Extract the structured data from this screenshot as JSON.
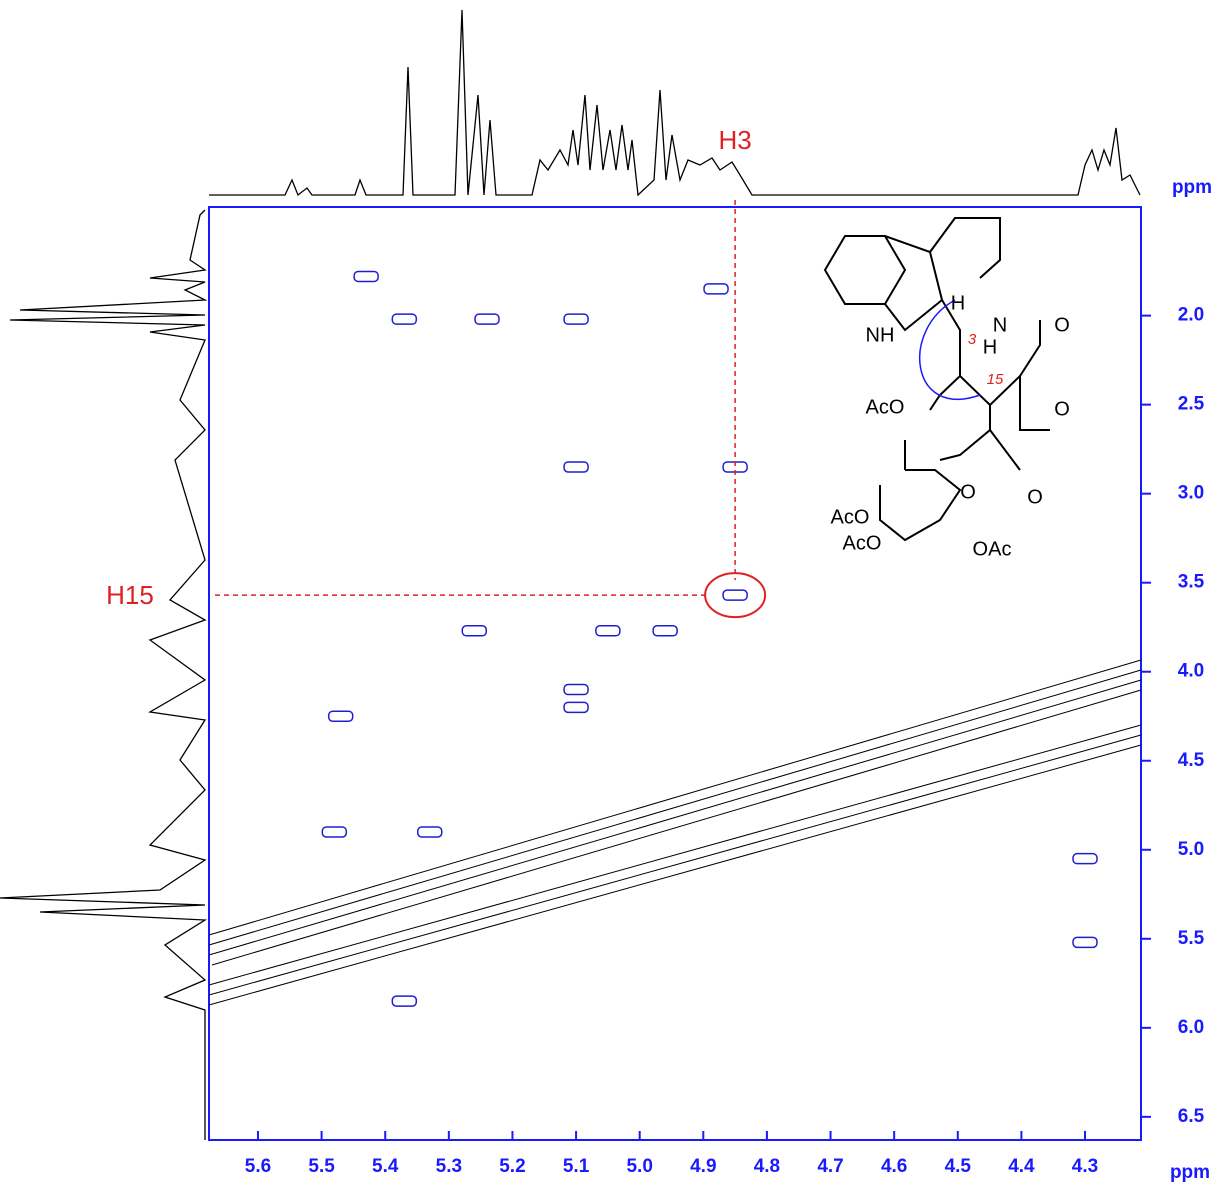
{
  "chart_data": {
    "type": "nmr2d",
    "x_label": "ppm",
    "y_label": "ppm",
    "xlim": [
      5.677,
      4.212
    ],
    "ylim": [
      1.39,
      6.63
    ],
    "xticks": [
      5.6,
      5.5,
      5.4,
      5.3,
      5.2,
      5.1,
      {
        "value": 5,
        "label": "5.0"
      },
      4.9,
      4.8,
      4.7,
      4.6,
      4.5,
      4.4,
      4.3
    ],
    "yticks": [
      {
        "value": 2,
        "label": "2.0"
      },
      2.5,
      {
        "value": 3,
        "label": "3.0"
      },
      3.5,
      {
        "value": 4,
        "label": "4.0"
      },
      4.5,
      {
        "value": 5,
        "label": "5.0"
      },
      5.5,
      {
        "value": 6,
        "label": "6.0"
      },
      6.5
    ],
    "peaks": {
      "color": "#1f1fd0",
      "x": [
        4.85,
        5.1,
        4.85,
        5.05,
        4.96,
        5.26,
        5.47,
        5.1,
        5.1,
        5.37,
        4.3,
        4.3,
        4.88,
        5.24,
        5.1,
        5.43,
        5.37,
        5.48,
        5.33
      ],
      "y": [
        3.57,
        2.85,
        2.85,
        3.77,
        3.77,
        3.77,
        4.25,
        4.2,
        4.1,
        5.85,
        5.05,
        5.52,
        1.85,
        2.02,
        2.02,
        1.78,
        2.02,
        4.9,
        4.9
      ]
    },
    "annotations": [
      {
        "text": "H3",
        "x": 4.85
      },
      {
        "text": "H15",
        "y": 3.57
      }
    ]
  },
  "structure": {
    "labels": [
      "NH",
      "N",
      "O",
      "H",
      "H",
      "3",
      "15",
      "O",
      "AcO",
      "O",
      "AcO",
      "AcO",
      "O",
      "OAc"
    ]
  }
}
